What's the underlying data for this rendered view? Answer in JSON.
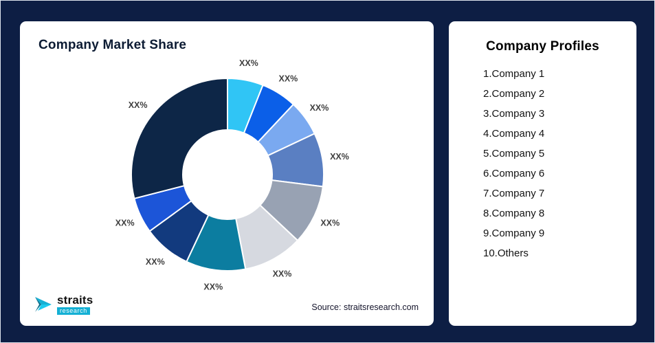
{
  "background_color": "#0d1e44",
  "accent_color": "#14b0d4",
  "left_card": {
    "title": "Company Market Share",
    "source": "Source: straitsresearch.com",
    "logo_text": "straits",
    "logo_sub": "research"
  },
  "right_card": {
    "title": "Company Profiles",
    "items": [
      "1.Company 1",
      "2.Company 2",
      "3.Company 3",
      "4.Company 4",
      "5.Company 5",
      "6.Company 6",
      "7.Company 7",
      "8.Company 8",
      "9.Company 9",
      "10.Others"
    ]
  },
  "chart_data": {
    "type": "pie",
    "subtype": "donut",
    "title": "Company Market Share",
    "source": "Source: straitsresearch.com",
    "legend": "none",
    "labels_are_placeholders": true,
    "start_angle_deg": 0,
    "inner_radius_ratio": 0.46,
    "segments": [
      {
        "label": "XX%",
        "value": 6,
        "color": "#30c5f5"
      },
      {
        "label": "XX%",
        "value": 6,
        "color": "#0b5fe8"
      },
      {
        "label": "XX%",
        "value": 6,
        "color": "#7aa9f0"
      },
      {
        "label": "XX%",
        "value": 9,
        "color": "#5a7fc2"
      },
      {
        "label": "XX%",
        "value": 10,
        "color": "#98a2b3"
      },
      {
        "label": "XX%",
        "value": 10,
        "color": "#d6d9e0"
      },
      {
        "label": "XX%",
        "value": 10,
        "color": "#0c7da0"
      },
      {
        "label": "XX%",
        "value": 8,
        "color": "#123a7e"
      },
      {
        "label": "XX%",
        "value": 6,
        "color": "#1c55d8"
      },
      {
        "label": "XX%",
        "value": 29,
        "color": "#0d2647"
      }
    ]
  }
}
